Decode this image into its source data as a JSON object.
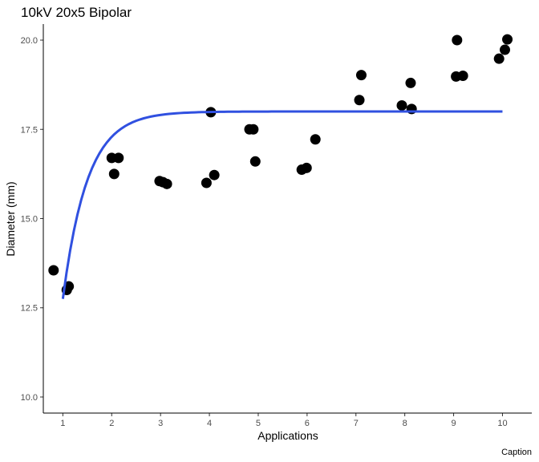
{
  "chart_data": {
    "type": "scatter",
    "title": "10kV 20x5 Bipolar",
    "xlabel": "Applications",
    "ylabel": "Diameter (mm)",
    "caption": "Caption",
    "xlim": [
      0.6,
      10.6
    ],
    "ylim": [
      9.55,
      20.45
    ],
    "x_ticks": [
      1,
      2,
      3,
      4,
      5,
      6,
      7,
      8,
      9,
      10
    ],
    "x_tick_labels": [
      "1",
      "2",
      "3",
      "4",
      "5",
      "6",
      "7",
      "8",
      "9",
      "10"
    ],
    "y_ticks": [
      10,
      12.5,
      15,
      17.5,
      20
    ],
    "y_tick_labels": [
      "10.0",
      "12.5",
      "15.0",
      "17.5",
      "20.0"
    ],
    "grid": false,
    "points": [
      {
        "x": 0.81,
        "y": 13.55
      },
      {
        "x": 1.08,
        "y": 13.0
      },
      {
        "x": 1.12,
        "y": 13.1
      },
      {
        "x": 2.0,
        "y": 16.7
      },
      {
        "x": 2.05,
        "y": 16.25
      },
      {
        "x": 2.14,
        "y": 16.7
      },
      {
        "x": 2.98,
        "y": 16.05
      },
      {
        "x": 3.05,
        "y": 16.02
      },
      {
        "x": 3.13,
        "y": 15.97
      },
      {
        "x": 3.94,
        "y": 16.0
      },
      {
        "x": 4.03,
        "y": 17.98
      },
      {
        "x": 4.1,
        "y": 16.22
      },
      {
        "x": 4.82,
        "y": 17.5
      },
      {
        "x": 4.9,
        "y": 17.5
      },
      {
        "x": 4.94,
        "y": 16.6
      },
      {
        "x": 5.89,
        "y": 16.37
      },
      {
        "x": 5.99,
        "y": 16.42
      },
      {
        "x": 6.17,
        "y": 17.22
      },
      {
        "x": 7.07,
        "y": 18.32
      },
      {
        "x": 7.11,
        "y": 19.02
      },
      {
        "x": 7.94,
        "y": 18.17
      },
      {
        "x": 8.12,
        "y": 18.8
      },
      {
        "x": 8.14,
        "y": 18.07
      },
      {
        "x": 9.05,
        "y": 18.98
      },
      {
        "x": 9.07,
        "y": 20.0
      },
      {
        "x": 9.19,
        "y": 19.0
      },
      {
        "x": 9.93,
        "y": 19.48
      },
      {
        "x": 10.05,
        "y": 19.73
      },
      {
        "x": 10.1,
        "y": 20.02
      }
    ],
    "fit_line": {
      "model": "asymptotic",
      "asymptote": 18.0,
      "start_x": 1,
      "start_y": 12.75,
      "rate": 2.0,
      "x_range": [
        1,
        10
      ],
      "color": "#3050e0"
    },
    "point_color": "#000000"
  }
}
